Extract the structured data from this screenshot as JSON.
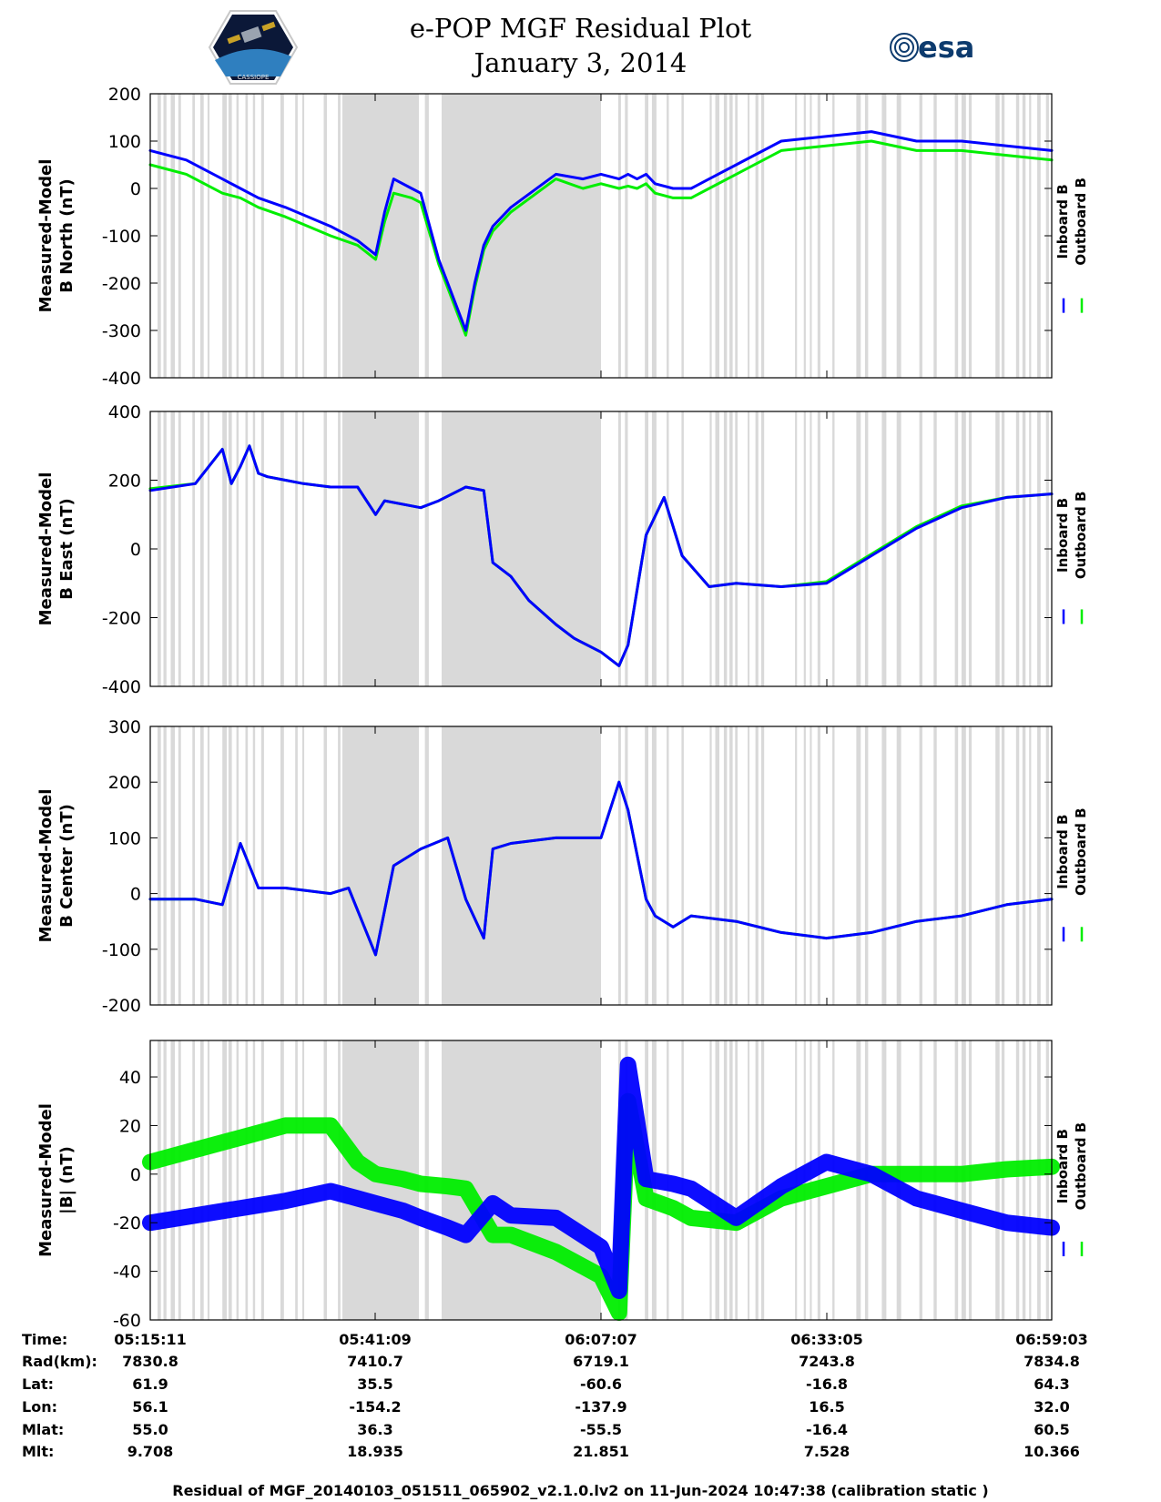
{
  "header": {
    "title_line1": "e-POP MGF Residual Plot",
    "title_line2": "January 3, 2014",
    "left_logo_text": "CASSIOPE",
    "right_logo_text": "esa"
  },
  "colors": {
    "inboard": "#0000ff",
    "outboard": "#00ee00",
    "shade": "#d9d9d9"
  },
  "chart_data": [
    {
      "type": "line",
      "ylabel_line1": "Measured-Model",
      "ylabel_line2": "B North (nT)",
      "ylim": [
        -400,
        200
      ],
      "yticks": [
        200,
        100,
        0,
        -100,
        -200,
        -300,
        -400
      ],
      "legend": [
        "Inboard B",
        "Outboard B"
      ],
      "x": [
        0,
        0.04,
        0.08,
        0.1,
        0.12,
        0.15,
        0.2,
        0.23,
        0.25,
        0.26,
        0.27,
        0.29,
        0.3,
        0.32,
        0.35,
        0.36,
        0.37,
        0.38,
        0.4,
        0.45,
        0.48,
        0.5,
        0.52,
        0.53,
        0.54,
        0.55,
        0.56,
        0.58,
        0.6,
        0.62,
        0.65,
        0.7,
        0.8,
        0.85,
        0.9,
        0.95,
        1.0
      ],
      "series": [
        {
          "name": "Inboard B",
          "values": [
            80,
            60,
            20,
            0,
            -20,
            -40,
            -80,
            -110,
            -140,
            -50,
            20,
            0,
            -10,
            -150,
            -300,
            -200,
            -120,
            -80,
            -40,
            30,
            20,
            30,
            20,
            30,
            20,
            30,
            10,
            0,
            0,
            20,
            50,
            100,
            120,
            100,
            100,
            90,
            80
          ]
        },
        {
          "name": "Outboard B",
          "values": [
            50,
            30,
            -10,
            -20,
            -40,
            -60,
            -100,
            -120,
            -150,
            -70,
            -10,
            -20,
            -30,
            -160,
            -310,
            -210,
            -130,
            -90,
            -50,
            20,
            0,
            10,
            0,
            5,
            0,
            10,
            -10,
            -20,
            -20,
            0,
            30,
            80,
            100,
            80,
            80,
            70,
            60
          ]
        }
      ]
    },
    {
      "type": "line",
      "ylabel_line1": "Measured-Model",
      "ylabel_line2": "B East (nT)",
      "ylim": [
        -400,
        400
      ],
      "yticks": [
        400,
        200,
        0,
        -200,
        -400
      ],
      "legend": [
        "Inboard B",
        "Outboard B"
      ],
      "x": [
        0,
        0.05,
        0.08,
        0.09,
        0.1,
        0.11,
        0.12,
        0.13,
        0.15,
        0.17,
        0.2,
        0.23,
        0.25,
        0.26,
        0.3,
        0.32,
        0.35,
        0.37,
        0.38,
        0.4,
        0.42,
        0.45,
        0.47,
        0.5,
        0.52,
        0.53,
        0.55,
        0.57,
        0.59,
        0.62,
        0.65,
        0.7,
        0.75,
        0.8,
        0.85,
        0.9,
        0.95,
        1.0
      ],
      "series": [
        {
          "name": "Inboard B",
          "values": [
            170,
            190,
            290,
            190,
            240,
            300,
            220,
            210,
            200,
            190,
            180,
            180,
            100,
            140,
            120,
            140,
            180,
            170,
            -40,
            -80,
            -150,
            -220,
            -260,
            -300,
            -340,
            -280,
            40,
            150,
            -20,
            -110,
            -100,
            -110,
            -100,
            -20,
            60,
            120,
            150,
            160
          ]
        },
        {
          "name": "Outboard B",
          "values": [
            175,
            190,
            290,
            190,
            240,
            300,
            220,
            210,
            200,
            190,
            180,
            180,
            100,
            140,
            120,
            140,
            180,
            170,
            -40,
            -80,
            -150,
            -220,
            -260,
            -300,
            -340,
            -280,
            40,
            150,
            -20,
            -110,
            -100,
            -110,
            -95,
            -15,
            65,
            125,
            150,
            160
          ]
        }
      ]
    },
    {
      "type": "line",
      "ylabel_line1": "Measured-Model",
      "ylabel_line2": "B Center (nT)",
      "ylim": [
        -200,
        300
      ],
      "yticks": [
        300,
        200,
        100,
        0,
        -100,
        -200
      ],
      "legend": [
        "Inboard B",
        "Outboard B"
      ],
      "x": [
        0,
        0.05,
        0.08,
        0.1,
        0.12,
        0.15,
        0.2,
        0.22,
        0.25,
        0.27,
        0.3,
        0.33,
        0.35,
        0.37,
        0.38,
        0.4,
        0.45,
        0.47,
        0.5,
        0.52,
        0.53,
        0.55,
        0.56,
        0.58,
        0.6,
        0.65,
        0.7,
        0.75,
        0.8,
        0.85,
        0.9,
        0.95,
        1.0
      ],
      "series": [
        {
          "name": "Inboard B",
          "values": [
            -10,
            -10,
            -20,
            90,
            10,
            10,
            0,
            10,
            -110,
            50,
            80,
            100,
            -10,
            -80,
            80,
            90,
            100,
            100,
            100,
            200,
            150,
            -10,
            -40,
            -60,
            -40,
            -50,
            -70,
            -80,
            -70,
            -50,
            -40,
            -20,
            -10
          ]
        },
        {
          "name": "Outboard B",
          "values": [
            -10,
            -10,
            -20,
            90,
            10,
            10,
            0,
            10,
            -110,
            50,
            80,
            100,
            -10,
            -80,
            80,
            90,
            100,
            100,
            100,
            200,
            150,
            -10,
            -40,
            -60,
            -40,
            -50,
            -70,
            -80,
            -70,
            -50,
            -40,
            -20,
            -10
          ]
        }
      ]
    },
    {
      "type": "line",
      "ylabel_line1": "Measured-Model",
      "ylabel_line2": "|B| (nT)",
      "ylim": [
        -60,
        55
      ],
      "yticks": [
        40,
        20,
        0,
        -20,
        -40,
        -60
      ],
      "legend": [
        "Inboard B",
        "Outboard B"
      ],
      "x": [
        0,
        0.05,
        0.1,
        0.15,
        0.2,
        0.23,
        0.25,
        0.28,
        0.3,
        0.33,
        0.35,
        0.38,
        0.4,
        0.45,
        0.5,
        0.52,
        0.53,
        0.55,
        0.58,
        0.6,
        0.65,
        0.7,
        0.75,
        0.8,
        0.85,
        0.9,
        0.95,
        1.0
      ],
      "series": [
        {
          "name": "Inboard B",
          "values": [
            -20,
            -17,
            -14,
            -11,
            -7,
            -10,
            -12,
            -15,
            -18,
            -22,
            -25,
            -12,
            -17,
            -18,
            -30,
            -48,
            45,
            -2,
            -4,
            -6,
            -18,
            -5,
            5,
            0,
            -10,
            -15,
            -20,
            -22
          ]
        },
        {
          "name": "Outboard B",
          "values": [
            5,
            10,
            15,
            20,
            20,
            5,
            0,
            -2,
            -4,
            -5,
            -6,
            -25,
            -25,
            -32,
            -42,
            -57,
            30,
            -10,
            -14,
            -18,
            -20,
            -10,
            -5,
            0,
            0,
            0,
            2,
            3
          ]
        }
      ]
    }
  ],
  "ephemeris": {
    "labels": [
      "Time:",
      "Rad(km):",
      "Lat:",
      "Lon:",
      "Mlat:",
      "Mlt:"
    ],
    "columns": [
      [
        "05:15:11",
        "7830.8",
        "61.9",
        "56.1",
        "55.0",
        "9.708"
      ],
      [
        "05:41:09",
        "7410.7",
        "35.5",
        "-154.2",
        "36.3",
        "18.935"
      ],
      [
        "06:07:07",
        "6719.1",
        "-60.6",
        "-137.9",
        "-55.5",
        "21.851"
      ],
      [
        "06:33:05",
        "7243.8",
        "-16.8",
        "16.5",
        "-16.4",
        "7.528"
      ],
      [
        "06:59:03",
        "7834.8",
        "64.3",
        "32.0",
        "60.5",
        "10.366"
      ]
    ]
  },
  "footer": "Residual of MGF_20140103_051511_065902_v2.1.0.lv2 on 11-Jun-2024 10:47:38 (calibration static )"
}
